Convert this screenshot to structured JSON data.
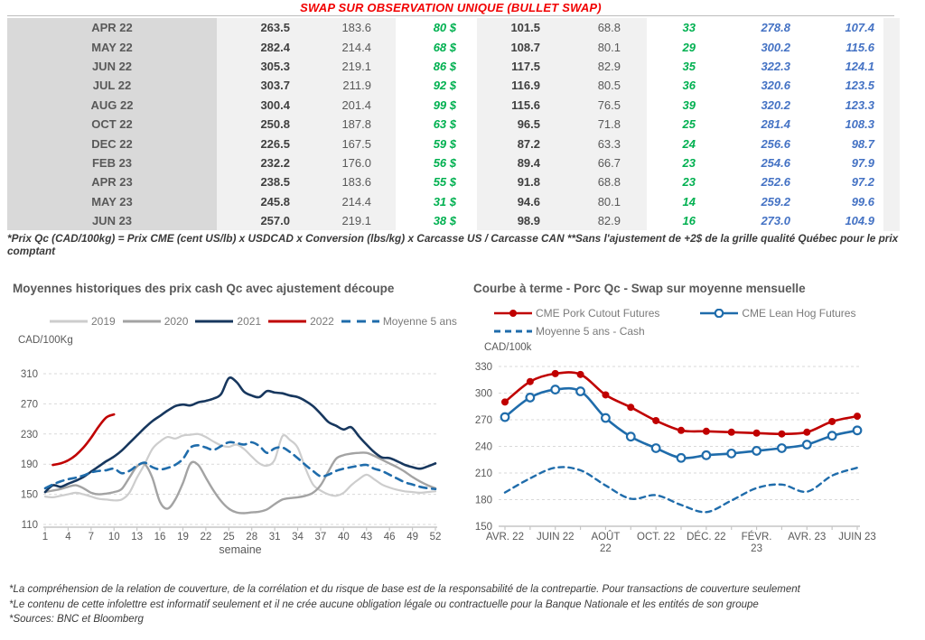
{
  "header": {
    "title": "SWAP SUR OBSERVATION UNIQUE (BULLET SWAP)"
  },
  "table": {
    "rows": [
      [
        "APR 22",
        "263.5",
        "183.6",
        "80 $",
        "101.5",
        "68.8",
        "33",
        "278.8",
        "107.4"
      ],
      [
        "MAY 22",
        "282.4",
        "214.4",
        "68 $",
        "108.7",
        "80.1",
        "29",
        "300.2",
        "115.6"
      ],
      [
        "JUN 22",
        "305.3",
        "219.1",
        "86 $",
        "117.5",
        "82.9",
        "35",
        "322.3",
        "124.1"
      ],
      [
        "JUL 22",
        "303.7",
        "211.9",
        "92 $",
        "116.9",
        "80.5",
        "36",
        "320.6",
        "123.5"
      ],
      [
        "AUG 22",
        "300.4",
        "201.4",
        "99 $",
        "115.6",
        "76.5",
        "39",
        "320.2",
        "123.3"
      ],
      [
        "OCT 22",
        "250.8",
        "187.8",
        "63 $",
        "96.5",
        "71.8",
        "25",
        "281.4",
        "108.3"
      ],
      [
        "DEC 22",
        "226.5",
        "167.5",
        "59 $",
        "87.2",
        "63.3",
        "24",
        "256.6",
        "98.7"
      ],
      [
        "FEB 23",
        "232.2",
        "176.0",
        "56 $",
        "89.4",
        "66.7",
        "23",
        "254.6",
        "97.9"
      ],
      [
        "APR 23",
        "238.5",
        "183.6",
        "55 $",
        "91.8",
        "68.8",
        "23",
        "252.6",
        "97.2"
      ],
      [
        "MAY 23",
        "245.8",
        "214.4",
        "31 $",
        "94.6",
        "80.1",
        "14",
        "259.2",
        "99.6"
      ],
      [
        "JUN 23",
        "257.0",
        "219.1",
        "38 $",
        "98.9",
        "82.9",
        "16",
        "273.0",
        "104.9"
      ]
    ]
  },
  "table_note": "*Prix Qc (CAD/100kg) = Prix CME (cent US/lb) x USDCAD x Conversion (lbs/kg) x Carcasse US / Carcasse CAN **Sans l'ajustement de +2$ de la grille qualité Québec pour le prix comptant",
  "footer_notes": [
    "*La compréhension de la relation de couverture, de la corrélation et du risque de base est de la responsabilité de la contrepartie. Pour transactions de couverture seulement",
    "*Le contenu de cette infolettre est informatif seulement et il ne crée aucune obligation légale ou contractuelle pour la Banque Nationale et les entités de son groupe",
    "*Sources: BNC et Bloomberg"
  ],
  "colors": {
    "title_red": "#f10000",
    "table_green": "#00b050",
    "table_blue": "#4472c4",
    "navy_2021": "#17375e",
    "red_2022": "#c00000",
    "gray_2020": "#a3a3a3",
    "lightgray_2019": "#cdcdcd",
    "dash_blue": "#1f6cab"
  },
  "chart_data": [
    {
      "type": "line",
      "title": "Moyennes historiques des prix cash Qc avec ajustement découpe",
      "unit": "CAD/100Kg",
      "xlabel": "semaine",
      "x_range": [
        1,
        52
      ],
      "y_range": [
        110,
        310
      ],
      "y_ticks": [
        110,
        150,
        190,
        230,
        270,
        310
      ],
      "x_ticks": [
        {
          "x": 1,
          "label": "1"
        },
        {
          "x": 4,
          "label": "4"
        },
        {
          "x": 7,
          "label": "7"
        },
        {
          "x": 10,
          "label": "10"
        },
        {
          "x": 13,
          "label": "13"
        },
        {
          "x": 16,
          "label": "16"
        },
        {
          "x": 19,
          "label": "19"
        },
        {
          "x": 22,
          "label": "22"
        },
        {
          "x": 25,
          "label": "25"
        },
        {
          "x": 28,
          "label": "28"
        },
        {
          "x": 31,
          "label": "31"
        },
        {
          "x": 34,
          "label": "34"
        },
        {
          "x": 37,
          "label": "37"
        },
        {
          "x": 40,
          "label": "40"
        },
        {
          "x": 43,
          "label": "43"
        },
        {
          "x": 46,
          "label": "46"
        },
        {
          "x": 49,
          "label": "49"
        },
        {
          "x": 52,
          "label": "52"
        }
      ],
      "series": [
        {
          "name": "2019",
          "color": "#cdcdcd",
          "width": 2.2,
          "values": [
            147,
            146,
            148,
            150,
            152,
            150,
            147,
            144,
            143,
            142,
            143,
            152,
            172,
            190,
            210,
            220,
            226,
            224,
            228,
            229,
            230,
            226,
            220,
            215,
            213,
            216,
            210,
            200,
            191,
            188,
            196,
            227,
            222,
            212,
            185,
            163,
            155,
            150,
            148,
            152,
            162,
            170,
            176,
            170,
            163,
            159,
            156,
            154,
            153,
            152,
            153,
            154
          ]
        },
        {
          "name": "2020",
          "color": "#a3a3a3",
          "width": 2.4,
          "values": [
            153,
            155,
            157,
            160,
            162,
            158,
            152,
            150,
            151,
            153,
            157,
            172,
            187,
            190,
            172,
            140,
            131,
            143,
            165,
            191,
            189,
            172,
            155,
            141,
            131,
            126,
            125,
            126,
            127,
            130,
            137,
            143,
            145,
            146,
            148,
            152,
            162,
            180,
            197,
            202,
            204,
            205,
            205,
            201,
            196,
            191,
            186,
            180,
            173,
            167,
            162,
            158
          ]
        },
        {
          "name": "2021",
          "color": "#17375e",
          "width": 2.6,
          "values": [
            153,
            162,
            160,
            164,
            168,
            173,
            180,
            187,
            194,
            200,
            208,
            218,
            228,
            238,
            247,
            254,
            261,
            267,
            269,
            268,
            272,
            274,
            277,
            283,
            304,
            299,
            286,
            281,
            279,
            287,
            285,
            284,
            281,
            279,
            274,
            267,
            257,
            246,
            241,
            236,
            239,
            227,
            216,
            206,
            199,
            198,
            194,
            189,
            186,
            184,
            187,
            191
          ]
        },
        {
          "name": "2022",
          "color": "#c00000",
          "width": 2.6,
          "x_start": 2,
          "values": [
            189,
            191,
            195,
            202,
            212,
            225,
            240,
            252,
            256
          ]
        },
        {
          "name": "Moyenne 5 ans",
          "color": "#1f6cab",
          "width": 2.6,
          "dash": "8 6",
          "legend_dash": "10 7",
          "values": [
            158,
            163,
            167,
            170,
            172,
            175,
            179,
            181,
            182,
            184,
            178,
            181,
            188,
            192,
            186,
            183,
            185,
            189,
            197,
            212,
            215,
            212,
            209,
            214,
            219,
            218,
            216,
            219,
            214,
            205,
            211,
            212,
            206,
            198,
            189,
            181,
            174,
            176,
            181,
            184,
            186,
            188,
            189,
            184,
            181,
            176,
            171,
            166,
            163,
            160,
            158,
            157
          ]
        }
      ]
    },
    {
      "type": "line",
      "title": "Courbe à terme - Porc Qc - Swap sur moyenne mensuelle",
      "unit": "CAD/100k",
      "xlabel": "",
      "x_range": [
        0,
        14
      ],
      "y_range": [
        150,
        330
      ],
      "y_ticks": [
        150,
        180,
        210,
        240,
        270,
        300,
        330
      ],
      "x_ticks": [
        {
          "x": 0,
          "label": "AVR. 22"
        },
        {
          "x": 2,
          "label": "JUIN 22"
        },
        {
          "x": 4,
          "label": "AOÛT\n22"
        },
        {
          "x": 6,
          "label": "OCT. 22"
        },
        {
          "x": 8,
          "label": "DÉC. 22"
        },
        {
          "x": 10,
          "label": "FÉVR.\n23"
        },
        {
          "x": 12,
          "label": "AVR. 23"
        },
        {
          "x": 14,
          "label": "JUIN 23"
        }
      ],
      "series": [
        {
          "name": "CME Pork Cutout Futures",
          "color": "#c00000",
          "width": 2.6,
          "marker": "filled",
          "values": [
            290,
            313,
            322,
            321,
            298,
            284,
            269,
            258,
            257,
            256,
            255,
            254,
            256,
            268,
            274
          ]
        },
        {
          "name": "CME Lean Hog Futures",
          "color": "#1f6cab",
          "width": 2.6,
          "marker": "open",
          "values": [
            273,
            295,
            304,
            302,
            272,
            251,
            238,
            227,
            230,
            232,
            235,
            238,
            242,
            252,
            258
          ]
        },
        {
          "name": "Moyenne 5 ans - Cash",
          "color": "#1f6cab",
          "width": 2.4,
          "dash": "6 5",
          "legend_dash": "7 5",
          "values": [
            188,
            204,
            216,
            213,
            196,
            181,
            185,
            174,
            166,
            179,
            193,
            197,
            189,
            207,
            216
          ]
        }
      ]
    }
  ]
}
